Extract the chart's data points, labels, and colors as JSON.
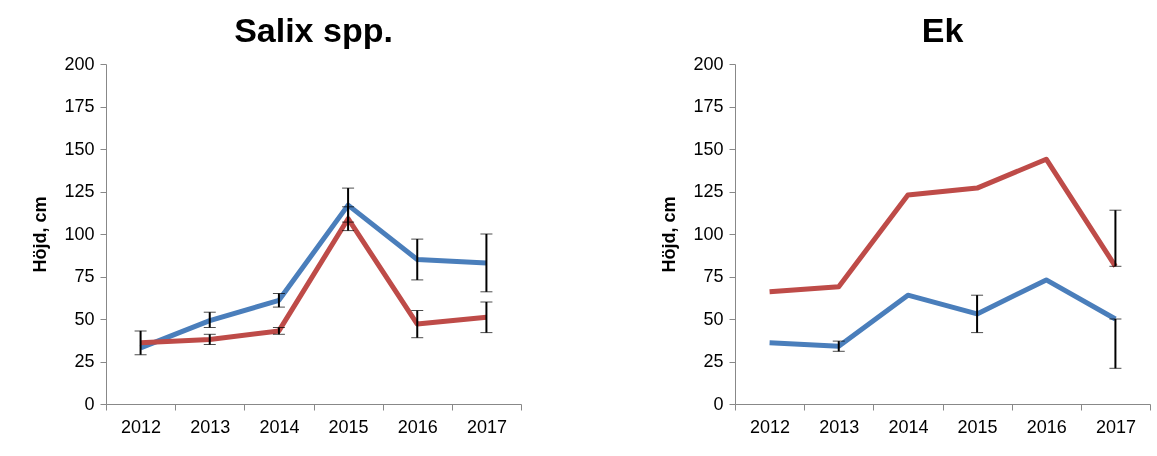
{
  "chart_data": [
    {
      "type": "line",
      "title": "Salix spp.",
      "ylabel": "Höjd, cm",
      "categories": [
        "2012",
        "2013",
        "2014",
        "2015",
        "2016",
        "2017"
      ],
      "ylim": [
        0,
        200
      ],
      "yticks": [
        0,
        25,
        50,
        75,
        100,
        125,
        150,
        175,
        200
      ],
      "series": [
        {
          "color": "#4a7ebb",
          "values": [
            33,
            49,
            61,
            117,
            85,
            83
          ],
          "errors": [
            null,
            [
              45,
              54
            ],
            [
              57,
              65
            ],
            [
              107,
              127
            ],
            [
              73,
              97
            ],
            [
              66,
              100
            ]
          ]
        },
        {
          "color": "#be4b48",
          "values": [
            36,
            38,
            43,
            109,
            47,
            51
          ],
          "errors": [
            [
              29,
              43
            ],
            [
              35,
              41
            ],
            [
              41,
              45
            ],
            [
              102,
              116
            ],
            [
              39,
              55
            ],
            [
              42,
              60
            ]
          ]
        }
      ]
    },
    {
      "type": "line",
      "title": "Ek",
      "ylabel": "Höjd, cm",
      "categories": [
        "2012",
        "2013",
        "2014",
        "2015",
        "2016",
        "2017"
      ],
      "ylim": [
        0,
        200
      ],
      "yticks": [
        0,
        25,
        50,
        75,
        100,
        125,
        150,
        175,
        200
      ],
      "series": [
        {
          "color": "#4a7ebb",
          "values": [
            36,
            34,
            64,
            53,
            73,
            50
          ],
          "errors": [
            null,
            [
              31,
              37
            ],
            null,
            [
              42,
              64
            ],
            null,
            [
              21,
              50
            ]
          ]
        },
        {
          "color": "#be4b48",
          "values": [
            66,
            69,
            123,
            127,
            144,
            81
          ],
          "errors": [
            null,
            null,
            null,
            null,
            null,
            [
              81,
              114
            ]
          ]
        }
      ]
    }
  ]
}
